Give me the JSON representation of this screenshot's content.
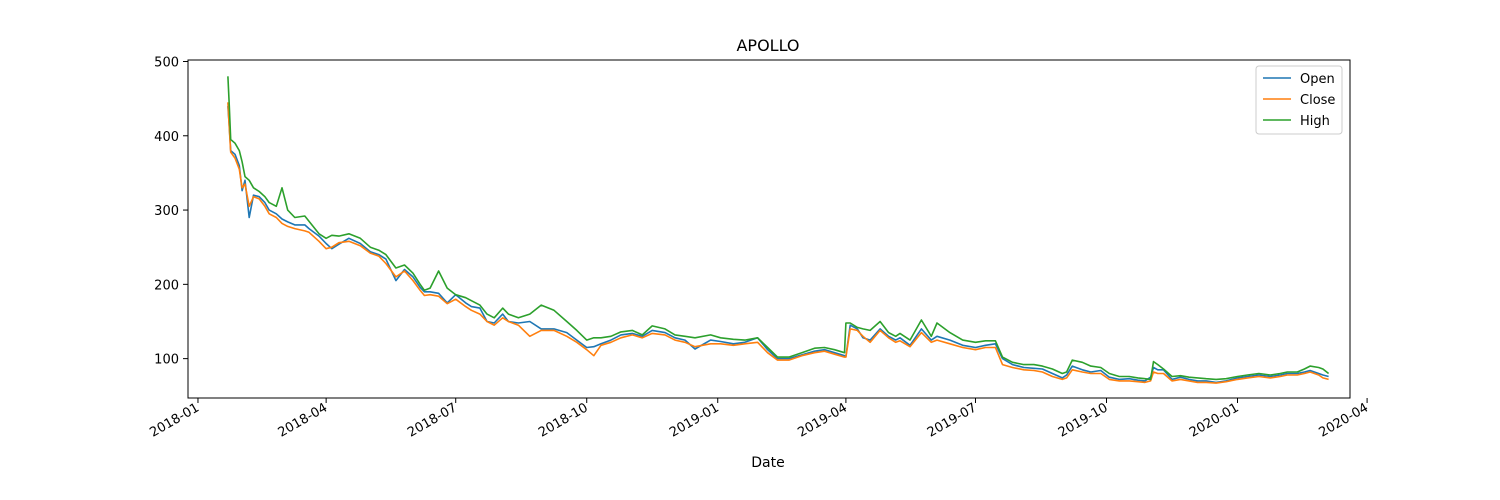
{
  "chart_data": {
    "type": "line",
    "title": "APOLLO",
    "xlabel": "Date",
    "ylabel": "",
    "xlim": [
      "2017-12-25",
      "2020-03-20"
    ],
    "ylim": [
      47,
      502
    ],
    "x_ticks": [
      {
        "date": "2018-01-01",
        "label": "2018-01"
      },
      {
        "date": "2018-04-01",
        "label": "2018-04"
      },
      {
        "date": "2018-07-01",
        "label": "2018-07"
      },
      {
        "date": "2018-10-01",
        "label": "2018-10"
      },
      {
        "date": "2019-01-01",
        "label": "2019-01"
      },
      {
        "date": "2019-04-01",
        "label": "2019-04"
      },
      {
        "date": "2019-07-01",
        "label": "2019-07"
      },
      {
        "date": "2019-10-01",
        "label": "2019-10"
      },
      {
        "date": "2020-01-01",
        "label": "2020-01"
      },
      {
        "date": "2020-04-01",
        "label": "2020-04"
      }
    ],
    "y_ticks": [
      100,
      200,
      300,
      400,
      500
    ],
    "grid": false,
    "legend_position": "top-right",
    "x": [
      "2018-01-22",
      "2018-01-23",
      "2018-01-24",
      "2018-01-27",
      "2018-01-30",
      "2018-02-01",
      "2018-02-03",
      "2018-02-06",
      "2018-02-09",
      "2018-02-13",
      "2018-02-17",
      "2018-02-20",
      "2018-02-25",
      "2018-03-01",
      "2018-03-05",
      "2018-03-10",
      "2018-03-17",
      "2018-03-20",
      "2018-03-27",
      "2018-04-01",
      "2018-04-05",
      "2018-04-10",
      "2018-04-17",
      "2018-04-25",
      "2018-05-02",
      "2018-05-08",
      "2018-05-13",
      "2018-05-20",
      "2018-05-26",
      "2018-06-01",
      "2018-06-06",
      "2018-06-09",
      "2018-06-13",
      "2018-06-19",
      "2018-06-25",
      "2018-07-01",
      "2018-07-08",
      "2018-07-12",
      "2018-07-18",
      "2018-07-23",
      "2018-07-28",
      "2018-08-03",
      "2018-08-07",
      "2018-08-14",
      "2018-08-22",
      "2018-08-30",
      "2018-09-08",
      "2018-09-17",
      "2018-09-24",
      "2018-10-01",
      "2018-10-06",
      "2018-10-11",
      "2018-10-18",
      "2018-10-25",
      "2018-11-02",
      "2018-11-09",
      "2018-11-16",
      "2018-11-25",
      "2018-12-02",
      "2018-12-09",
      "2018-12-16",
      "2018-12-27",
      "2019-01-03",
      "2019-01-12",
      "2019-01-20",
      "2019-01-29",
      "2019-02-05",
      "2019-02-12",
      "2019-02-20",
      "2019-03-01",
      "2019-03-10",
      "2019-03-17",
      "2019-03-24",
      "2019-03-31",
      "2019-04-01",
      "2019-04-04",
      "2019-04-09",
      "2019-04-13",
      "2019-04-18",
      "2019-04-25",
      "2019-05-01",
      "2019-05-06",
      "2019-05-09",
      "2019-05-16",
      "2019-05-24",
      "2019-05-31",
      "2019-06-04",
      "2019-06-13",
      "2019-06-22",
      "2019-07-01",
      "2019-07-08",
      "2019-07-15",
      "2019-07-20",
      "2019-07-27",
      "2019-08-04",
      "2019-08-11",
      "2019-08-17",
      "2019-08-24",
      "2019-08-31",
      "2019-09-03",
      "2019-09-07",
      "2019-09-14",
      "2019-09-20",
      "2019-09-27",
      "2019-10-03",
      "2019-10-10",
      "2019-10-17",
      "2019-10-23",
      "2019-10-28",
      "2019-11-01",
      "2019-11-03",
      "2019-11-06",
      "2019-11-10",
      "2019-11-16",
      "2019-11-22",
      "2019-11-28",
      "2019-12-04",
      "2019-12-10",
      "2019-12-17",
      "2019-12-24",
      "2020-01-01",
      "2020-01-08",
      "2020-01-16",
      "2020-01-24",
      "2020-01-31",
      "2020-02-05",
      "2020-02-12",
      "2020-02-17",
      "2020-02-21",
      "2020-02-27",
      "2020-03-01",
      "2020-03-05"
    ],
    "series": [
      {
        "name": "Open",
        "color": "#1f77b4",
        "values": [
          440,
          412,
          380,
          375,
          360,
          326,
          340,
          290,
          320,
          318,
          310,
          300,
          295,
          288,
          284,
          280,
          280,
          275,
          265,
          255,
          248,
          254,
          262,
          255,
          244,
          240,
          234,
          205,
          220,
          210,
          196,
          190,
          190,
          188,
          175,
          186,
          175,
          170,
          168,
          150,
          148,
          160,
          150,
          148,
          150,
          140,
          140,
          135,
          125,
          115,
          116,
          120,
          125,
          132,
          134,
          130,
          138,
          135,
          128,
          125,
          113,
          125,
          123,
          120,
          122,
          128,
          112,
          100,
          100,
          105,
          110,
          112,
          108,
          104,
          103,
          145,
          140,
          128,
          125,
          140,
          130,
          125,
          128,
          118,
          140,
          125,
          130,
          125,
          118,
          115,
          118,
          120,
          100,
          92,
          88,
          87,
          86,
          80,
          74,
          78,
          90,
          85,
          82,
          84,
          75,
          72,
          73,
          71,
          70,
          75,
          88,
          85,
          85,
          72,
          75,
          72,
          70,
          70,
          68,
          70,
          74,
          76,
          78,
          76,
          78,
          80,
          80,
          82,
          84,
          80,
          78,
          76
        ]
      },
      {
        "name": "Close",
        "color": "#ff7f0e",
        "values": [
          445,
          410,
          378,
          370,
          355,
          330,
          335,
          305,
          318,
          315,
          305,
          295,
          290,
          282,
          278,
          275,
          272,
          270,
          258,
          248,
          250,
          256,
          258,
          252,
          242,
          238,
          228,
          210,
          218,
          205,
          192,
          185,
          186,
          184,
          174,
          180,
          170,
          165,
          160,
          150,
          145,
          155,
          150,
          145,
          130,
          138,
          138,
          130,
          122,
          112,
          104,
          118,
          122,
          128,
          132,
          128,
          134,
          132,
          125,
          122,
          116,
          120,
          120,
          118,
          120,
          122,
          108,
          98,
          98,
          104,
          108,
          110,
          106,
          102,
          102,
          140,
          138,
          130,
          122,
          138,
          128,
          122,
          124,
          116,
          135,
          122,
          125,
          120,
          115,
          112,
          115,
          115,
          92,
          88,
          85,
          84,
          82,
          76,
          72,
          74,
          85,
          82,
          80,
          80,
          72,
          70,
          70,
          69,
          68,
          70,
          82,
          80,
          80,
          70,
          72,
          70,
          68,
          68,
          67,
          69,
          72,
          74,
          76,
          74,
          76,
          78,
          78,
          80,
          82,
          78,
          74,
          72
        ]
      },
      {
        "name": "High",
        "color": "#2ca02c",
        "values": [
          480,
          440,
          395,
          390,
          380,
          365,
          345,
          340,
          330,
          325,
          318,
          310,
          305,
          330,
          300,
          290,
          292,
          285,
          268,
          262,
          266,
          265,
          268,
          262,
          250,
          246,
          240,
          222,
          226,
          215,
          200,
          192,
          195,
          218,
          195,
          186,
          182,
          178,
          172,
          160,
          155,
          168,
          160,
          155,
          160,
          172,
          165,
          150,
          138,
          125,
          128,
          128,
          130,
          136,
          138,
          132,
          144,
          140,
          132,
          130,
          128,
          132,
          128,
          126,
          125,
          128,
          115,
          102,
          102,
          108,
          114,
          115,
          112,
          108,
          148,
          148,
          142,
          140,
          138,
          150,
          135,
          130,
          134,
          125,
          152,
          130,
          148,
          135,
          125,
          122,
          124,
          124,
          102,
          95,
          92,
          92,
          90,
          86,
          80,
          82,
          98,
          95,
          90,
          88,
          80,
          76,
          76,
          74,
          73,
          72,
          96,
          92,
          86,
          76,
          77,
          75,
          74,
          73,
          72,
          73,
          76,
          78,
          80,
          78,
          80,
          82,
          82,
          86,
          90,
          88,
          86,
          80
        ]
      }
    ]
  }
}
